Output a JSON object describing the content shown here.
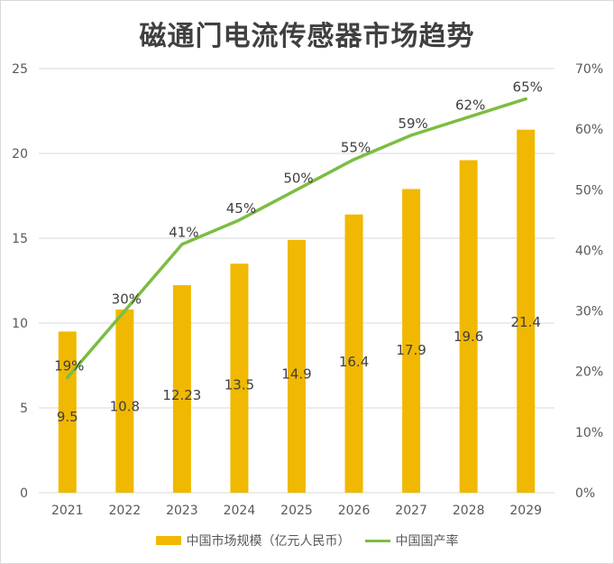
{
  "chart_data": {
    "type": "bar",
    "title": "磁通门电流传感器市场趋势",
    "categories": [
      "2021",
      "2022",
      "2023",
      "2024",
      "2025",
      "2026",
      "2027",
      "2028",
      "2029"
    ],
    "series": [
      {
        "name": "中国市场规模（亿元人民币）",
        "type": "bar",
        "axis": "left",
        "color": "#f0b800",
        "values": [
          9.5,
          10.8,
          12.23,
          13.5,
          14.9,
          16.4,
          17.9,
          19.6,
          21.4
        ],
        "labels": [
          "9.5",
          "10.8",
          "12.23",
          "13.5",
          "14.9",
          "16.4",
          "17.9",
          "19.6",
          "21.4"
        ]
      },
      {
        "name": "中国国产率",
        "type": "line",
        "axis": "right",
        "color": "#7cbd42",
        "values": [
          19,
          30,
          41,
          45,
          50,
          55,
          59,
          62,
          65
        ],
        "labels": [
          "19%",
          "30%",
          "41%",
          "45%",
          "50%",
          "55%",
          "59%",
          "62%",
          "65%"
        ]
      }
    ],
    "y_left": {
      "min": 0,
      "max": 25,
      "ticks": [
        "0",
        "5",
        "10",
        "15",
        "20",
        "25"
      ]
    },
    "y_right": {
      "min": 0,
      "max": 70,
      "ticks": [
        "0%",
        "10%",
        "20%",
        "30%",
        "40%",
        "50%",
        "60%",
        "70%"
      ]
    },
    "grid": true,
    "legend_position": "bottom"
  }
}
